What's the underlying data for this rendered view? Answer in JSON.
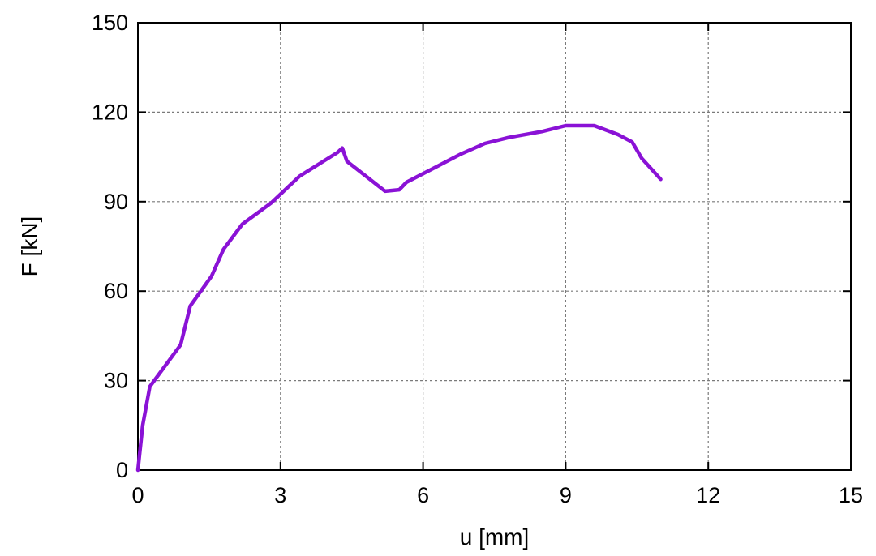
{
  "chart_data": {
    "type": "line",
    "title": "",
    "xlabel": "u [mm]",
    "ylabel": "F [kN]",
    "xlim": [
      0,
      15
    ],
    "ylim": [
      0,
      150
    ],
    "xticks": [
      0,
      3,
      6,
      9,
      12,
      15
    ],
    "yticks": [
      0,
      30,
      60,
      90,
      120,
      150
    ],
    "grid": true,
    "series": [
      {
        "color": "#8a12d6",
        "x": [
          0,
          0.1,
          0.25,
          0.9,
          1.1,
          1.55,
          1.8,
          2.2,
          2.8,
          3.4,
          3.9,
          4.2,
          4.3,
          4.4,
          4.8,
          5.2,
          5.5,
          5.65,
          6.2,
          6.8,
          7.3,
          7.8,
          8.5,
          9.0,
          9.6,
          10.1,
          10.4,
          10.6,
          11.0
        ],
        "y": [
          0,
          15,
          28,
          42,
          55,
          65,
          74,
          82.5,
          89.5,
          98.5,
          103.5,
          106.5,
          108,
          103.5,
          98.5,
          93.5,
          94,
          96.5,
          101,
          106,
          109.5,
          111.5,
          113.5,
          115.5,
          115.5,
          112.5,
          110,
          104.5,
          97.5
        ]
      }
    ]
  }
}
